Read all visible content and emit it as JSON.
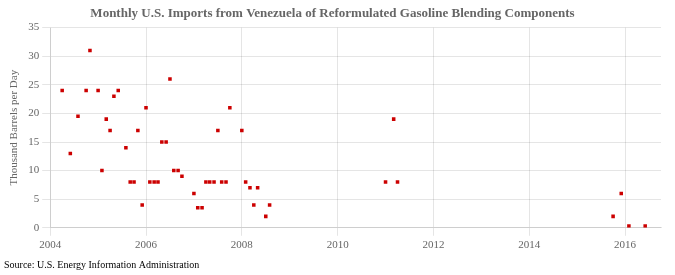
{
  "chart_data": {
    "type": "scatter",
    "title": "Monthly U.S. Imports from Venezuela of Reformulated Gasoline Blending Components",
    "ylabel": "Thousand Barrels per Day",
    "source": "Source: U.S. Energy Information Administration",
    "color": "#cc0000",
    "marker": "square",
    "grid": true,
    "xlim": [
      2004,
      2016.75
    ],
    "ylim": [
      0,
      35
    ],
    "xticks": [
      2004,
      2006,
      2008,
      2010,
      2012,
      2014,
      2016
    ],
    "yticks": [
      0,
      5,
      10,
      15,
      20,
      25,
      30,
      35
    ],
    "x": [
      2004.25,
      2004.42,
      2004.58,
      2004.75,
      2004.83,
      2005.0,
      2005.08,
      2005.17,
      2005.25,
      2005.33,
      2005.42,
      2005.58,
      2005.67,
      2005.75,
      2005.83,
      2005.92,
      2006.0,
      2006.08,
      2006.17,
      2006.25,
      2006.33,
      2006.42,
      2006.5,
      2006.58,
      2006.67,
      2006.75,
      2007.0,
      2007.08,
      2007.17,
      2007.25,
      2007.33,
      2007.42,
      2007.5,
      2007.58,
      2007.67,
      2007.75,
      2008.0,
      2008.08,
      2008.17,
      2008.25,
      2008.33,
      2008.5,
      2008.58,
      2011.0,
      2011.17,
      2011.25,
      2015.75,
      2015.92,
      2016.08,
      2016.42
    ],
    "values": [
      24,
      13,
      19.5,
      24,
      31,
      24,
      10,
      19,
      17,
      23,
      24,
      14,
      8,
      8,
      17,
      4,
      21,
      8,
      8,
      8,
      15,
      15,
      26,
      10,
      10,
      9,
      6,
      3.5,
      3.5,
      8,
      8,
      8,
      17,
      8,
      8,
      21,
      17,
      8,
      7,
      4,
      7,
      2,
      4,
      8,
      19,
      8,
      2,
      6,
      0.3,
      0.3
    ]
  }
}
